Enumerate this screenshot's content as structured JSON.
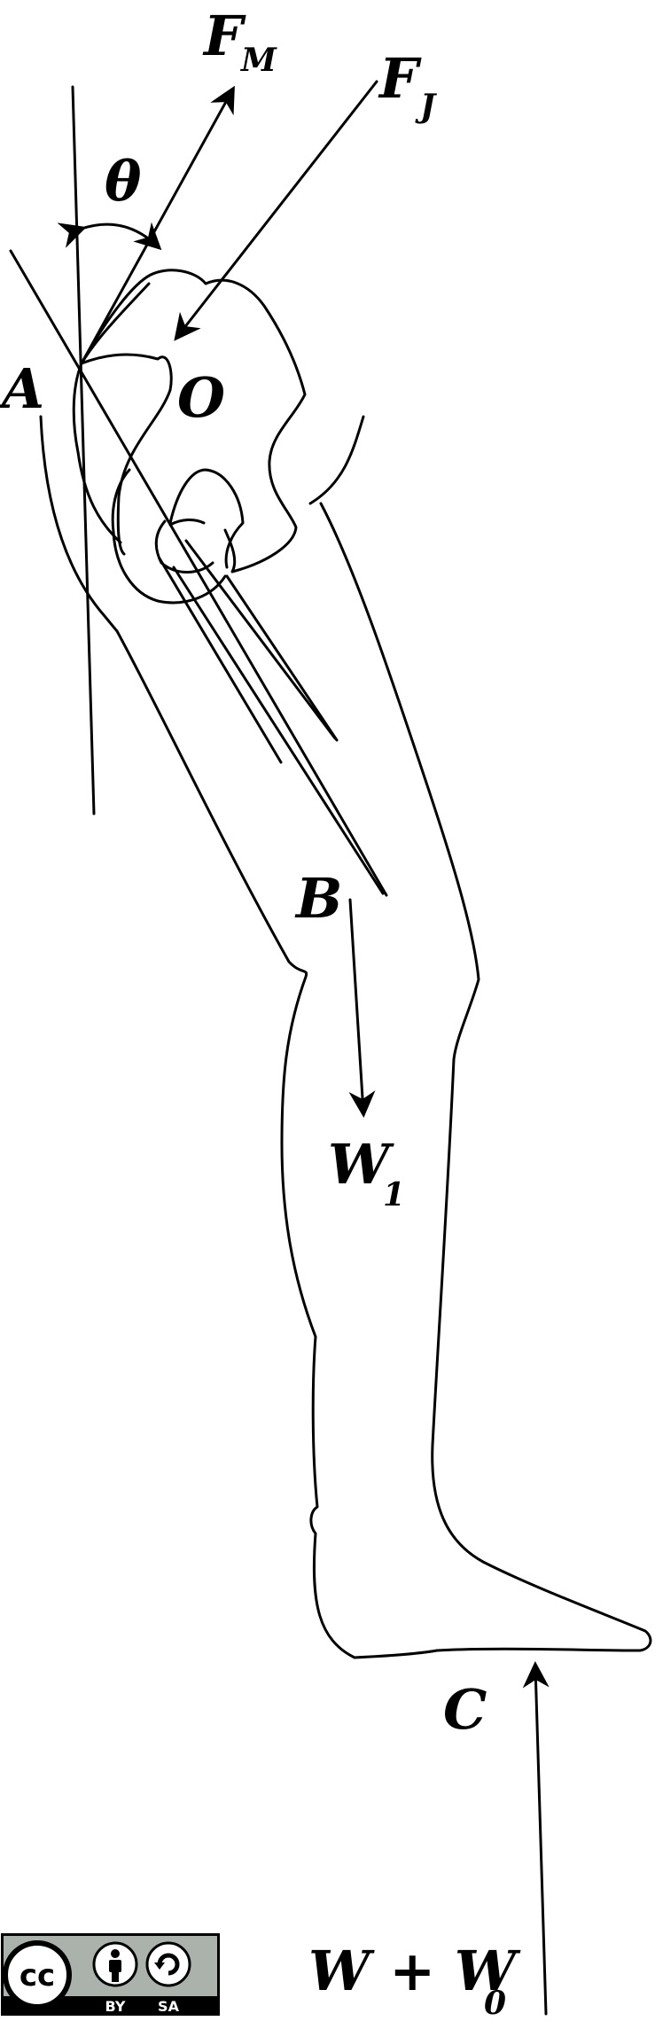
{
  "labels": {
    "force_muscle": "F",
    "force_muscle_sub": "M",
    "force_joint": "F",
    "force_joint_sub": "J",
    "angle": "θ",
    "point_a": "A",
    "point_o": "O",
    "point_b": "B",
    "weight_leg": "W",
    "weight_leg_sub": "1",
    "point_c": "C",
    "ground_reaction": "W + W",
    "ground_reaction_sub": "0"
  },
  "license": {
    "cc": "cc",
    "by": "BY",
    "sa": "SA"
  },
  "colors": {
    "ink": "#000000",
    "background": "#ffffff",
    "badge_gray": "#aab2ab"
  },
  "icons": [
    "creative-commons-icon",
    "attribution-person-icon",
    "share-alike-icon"
  ]
}
